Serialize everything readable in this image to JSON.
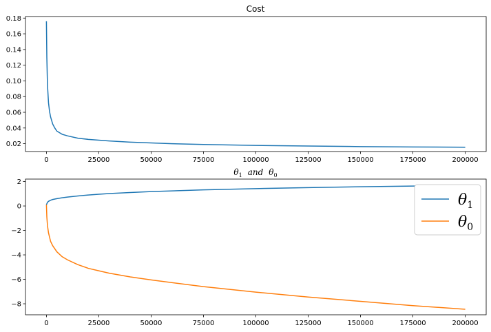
{
  "chart_data": [
    {
      "type": "line",
      "title": "Cost",
      "xlabel": "",
      "ylabel": "",
      "xlim": [
        -10000,
        210000
      ],
      "ylim": [
        0.01,
        0.182
      ],
      "xticks": [
        0,
        25000,
        50000,
        75000,
        100000,
        125000,
        150000,
        175000,
        200000
      ],
      "xtick_labels": [
        "0",
        "25000",
        "50000",
        "75000",
        "100000",
        "125000",
        "150000",
        "175000",
        "200000"
      ],
      "yticks": [
        0.02,
        0.04,
        0.06,
        0.08,
        0.1,
        0.12,
        0.14,
        0.16,
        0.18
      ],
      "ytick_labels": [
        "0.02",
        "0.04",
        "0.06",
        "0.08",
        "0.10",
        "0.12",
        "0.14",
        "0.16",
        "0.18"
      ],
      "grid": false,
      "series": [
        {
          "color": "#1f77b4",
          "x": [
            0,
            200,
            500,
            1000,
            1500,
            2000,
            3000,
            4000,
            5000,
            7500,
            10000,
            15000,
            20000,
            25000,
            30000,
            40000,
            50000,
            60000,
            75000,
            100000,
            125000,
            150000,
            175000,
            200000
          ],
          "y": [
            0.176,
            0.13,
            0.095,
            0.072,
            0.061,
            0.054,
            0.045,
            0.04,
            0.036,
            0.032,
            0.03,
            0.027,
            0.0255,
            0.0245,
            0.0235,
            0.022,
            0.021,
            0.02,
            0.019,
            0.0178,
            0.017,
            0.0163,
            0.0158,
            0.0155
          ]
        }
      ]
    },
    {
      "type": "line",
      "title_parts": [
        "θ",
        "1",
        "and",
        "θ",
        "0"
      ],
      "xlabel": "",
      "ylabel": "",
      "xlim": [
        -10000,
        210000
      ],
      "ylim": [
        -8.9,
        2.2
      ],
      "xticks": [
        0,
        25000,
        50000,
        75000,
        100000,
        125000,
        150000,
        175000,
        200000
      ],
      "xtick_labels": [
        "0",
        "25000",
        "50000",
        "75000",
        "100000",
        "125000",
        "150000",
        "175000",
        "200000"
      ],
      "yticks": [
        2,
        0,
        -2,
        -4,
        -6,
        -8
      ],
      "ytick_labels": [
        "2",
        "0",
        "−2",
        "−4",
        "−6",
        "−8"
      ],
      "grid": false,
      "legend_position": "top-right",
      "series": [
        {
          "name": [
            "θ",
            "1"
          ],
          "color": "#1f77b4",
          "x": [
            0,
            500,
            1000,
            2000,
            3000,
            5000,
            7500,
            10000,
            15000,
            20000,
            25000,
            30000,
            40000,
            50000,
            75000,
            100000,
            125000,
            150000,
            175000,
            200000
          ],
          "y": [
            0.1,
            0.3,
            0.38,
            0.47,
            0.53,
            0.6,
            0.67,
            0.73,
            0.82,
            0.9,
            0.96,
            1.02,
            1.1,
            1.18,
            1.32,
            1.42,
            1.5,
            1.57,
            1.63,
            1.68
          ]
        },
        {
          "name": [
            "θ",
            "0"
          ],
          "color": "#ff7f0e",
          "x": [
            0,
            200,
            500,
            1000,
            2000,
            3000,
            5000,
            7500,
            10000,
            15000,
            20000,
            25000,
            30000,
            40000,
            50000,
            75000,
            100000,
            125000,
            150000,
            175000,
            200000
          ],
          "y": [
            0.1,
            -0.9,
            -1.6,
            -2.2,
            -2.9,
            -3.25,
            -3.75,
            -4.15,
            -4.4,
            -4.8,
            -5.1,
            -5.3,
            -5.5,
            -5.8,
            -6.05,
            -6.6,
            -7.05,
            -7.45,
            -7.8,
            -8.15,
            -8.45
          ]
        }
      ]
    }
  ]
}
